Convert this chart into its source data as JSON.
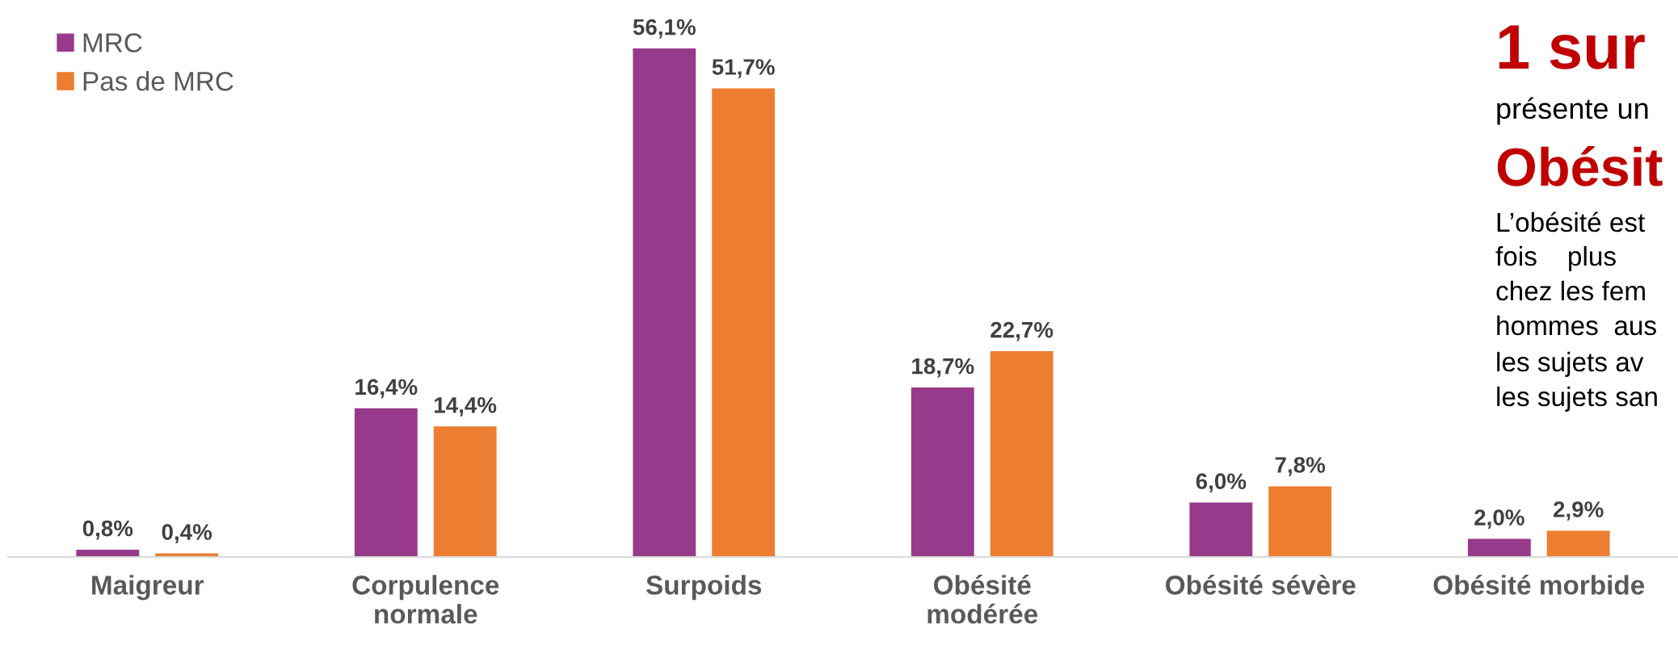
{
  "chart_data": {
    "type": "bar",
    "categories": [
      "Maigreur",
      "Corpulence\nnormale",
      "Surpoids",
      "Obésité\nmodérée",
      "Obésité sévère",
      "Obésité morbide"
    ],
    "series": [
      {
        "name": "MRC",
        "color": "#983a8c",
        "values": [
          0.8,
          16.4,
          56.1,
          18.7,
          6.0,
          2.0
        ],
        "value_labels": [
          "0,8%",
          "16,4%",
          "56,1%",
          "18,7%",
          "6,0%",
          "2,0%"
        ]
      },
      {
        "name": "Pas de MRC",
        "color": "#ed7d31",
        "values": [
          0.4,
          14.4,
          51.7,
          22.7,
          7.8,
          2.9
        ],
        "value_labels": [
          "0,4%",
          "14,4%",
          "51,7%",
          "22,7%",
          "7,8%",
          "2,9%"
        ]
      }
    ],
    "tick_labels": "x",
    "legend": "top left",
    "annotations": [
      "1 sur",
      "présente un",
      "Obésit",
      "L’obésité est",
      "fois    plus",
      "chez les fem",
      "hommes  aus",
      "les sujets av",
      "les sujets san"
    ]
  }
}
